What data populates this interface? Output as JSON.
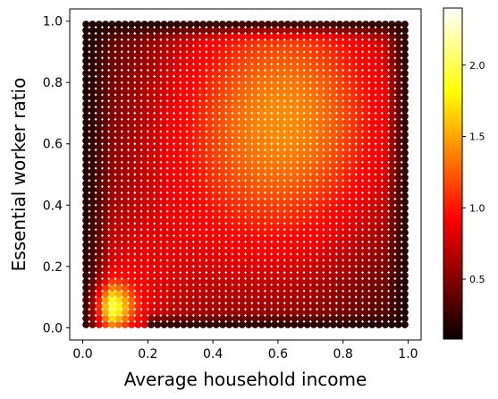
{
  "chart_data": {
    "type": "scatter",
    "xlabel": "Average household income",
    "ylabel": "Essential worker ratio",
    "xlim": [
      -0.04,
      1.04
    ],
    "ylim": [
      -0.04,
      1.04
    ],
    "x_ticks": [
      "0.0",
      "0.2",
      "0.4",
      "0.6",
      "0.8",
      "1.0"
    ],
    "y_ticks": [
      "0.0",
      "0.2",
      "0.4",
      "0.6",
      "0.8",
      "1.0"
    ],
    "grid": false,
    "grid_points": {
      "x_start": 0.01,
      "x_end": 0.99,
      "y_start": 0.01,
      "y_end": 0.99,
      "step": 0.02
    },
    "colormap": "hot",
    "color_range": [
      0.08,
      2.4
    ],
    "colorbar_ticks": [
      "0.5",
      "1.0",
      "1.5",
      "2.0"
    ]
  }
}
